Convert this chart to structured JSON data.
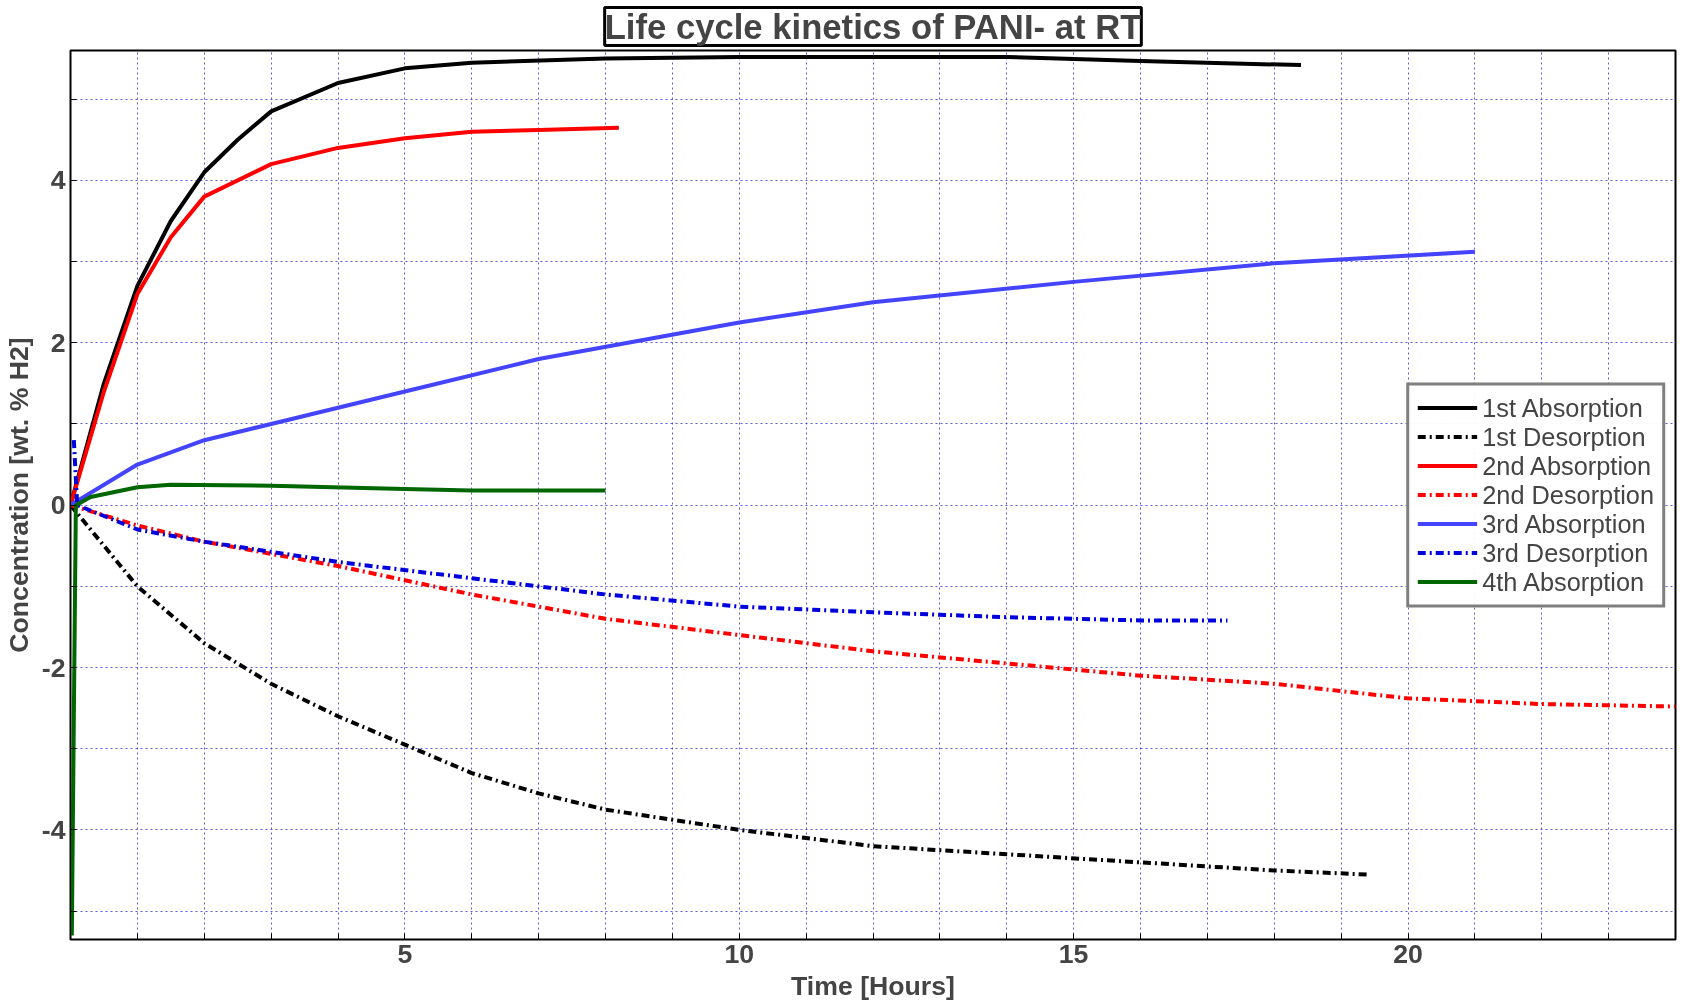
{
  "chart_data": {
    "type": "line",
    "title": "Life cycle kinetics of PANI- at RT",
    "xlabel": "Time [Hours]",
    "ylabel": "Concentration [wt. % H2]",
    "xlim": [
      0,
      24
    ],
    "ylim": [
      -5.35,
      5.6
    ],
    "xticks": [
      {
        "value": 1,
        "label": null
      },
      {
        "value": 2,
        "label": null
      },
      {
        "value": 3,
        "label": null
      },
      {
        "value": 4,
        "label": null
      },
      5,
      {
        "value": 6,
        "label": null
      },
      {
        "value": 7,
        "label": null
      },
      {
        "value": 8,
        "label": null
      },
      {
        "value": 9,
        "label": null
      },
      10,
      {
        "value": 11,
        "label": null
      },
      {
        "value": 12,
        "label": null
      },
      {
        "value": 13,
        "label": null
      },
      {
        "value": 14,
        "label": null
      },
      15,
      {
        "value": 16,
        "label": null
      },
      {
        "value": 17,
        "label": null
      },
      {
        "value": 18,
        "label": null
      },
      {
        "value": 19,
        "label": null
      },
      20,
      {
        "value": 21,
        "label": null
      },
      {
        "value": 22,
        "label": null
      },
      {
        "value": 23,
        "label": null
      }
    ],
    "yticks": [
      {
        "value": -5,
        "label": null
      },
      -4,
      {
        "value": -3,
        "label": null
      },
      -2,
      {
        "value": -1,
        "label": null
      },
      0,
      {
        "value": 1,
        "label": null
      },
      2,
      {
        "value": 3,
        "label": null
      },
      4,
      {
        "value": 5,
        "label": null
      }
    ],
    "grid": true,
    "legend": "right",
    "marker": "none",
    "series": [
      {
        "name": "1st Absorption",
        "color": "#000000",
        "line_style": "solid",
        "x": [
          0,
          0.5,
          1,
          1.5,
          2,
          2.5,
          3,
          4,
          5,
          6,
          8,
          10,
          12,
          14,
          16,
          18.4
        ],
        "values": [
          0,
          1.5,
          2.7,
          3.5,
          4.1,
          4.5,
          4.85,
          5.2,
          5.38,
          5.45,
          5.5,
          5.52,
          5.52,
          5.52,
          5.47,
          5.42
        ]
      },
      {
        "name": "1st Desorption",
        "color": "#000000",
        "line_style": "dashed",
        "x": [
          0,
          0.5,
          1,
          2,
          3,
          4,
          5,
          6,
          7,
          8,
          10,
          12,
          14,
          16,
          18,
          19.4
        ],
        "values": [
          0,
          -0.5,
          -1.0,
          -1.7,
          -2.2,
          -2.6,
          -2.95,
          -3.3,
          -3.55,
          -3.75,
          -4.0,
          -4.2,
          -4.3,
          -4.4,
          -4.5,
          -4.55
        ]
      },
      {
        "name": "2nd Absorption",
        "color": "#ff0000",
        "line_style": "solid",
        "x": [
          0,
          0.5,
          1,
          1.5,
          2,
          3,
          4,
          5,
          6,
          7,
          8.2
        ],
        "values": [
          0,
          1.4,
          2.6,
          3.3,
          3.8,
          4.2,
          4.4,
          4.52,
          4.6,
          4.62,
          4.65
        ]
      },
      {
        "name": "2nd Desorption",
        "color": "#ff0000",
        "line_style": "dashed",
        "x": [
          0,
          1,
          2,
          4,
          6,
          8,
          10,
          12,
          14,
          16,
          18,
          20,
          22,
          24
        ],
        "values": [
          0,
          -0.25,
          -0.45,
          -0.75,
          -1.1,
          -1.4,
          -1.6,
          -1.8,
          -1.95,
          -2.1,
          -2.2,
          -2.38,
          -2.45,
          -2.48
        ]
      },
      {
        "name": "3rd Absorption",
        "color": "#4444ff",
        "line_style": "solid",
        "x": [
          0,
          1,
          2,
          3,
          5,
          7,
          10,
          12,
          15,
          18,
          21
        ],
        "values": [
          0,
          0.5,
          0.8,
          1.0,
          1.4,
          1.8,
          2.25,
          2.5,
          2.75,
          2.98,
          3.12
        ]
      },
      {
        "name": "3rd Desorption",
        "color": "#0000dd",
        "line_style": "dashed",
        "x": [
          0.05,
          0.1,
          1,
          2,
          4,
          6,
          8,
          10,
          12,
          14,
          16,
          17.3
        ],
        "values": [
          0.8,
          0,
          -0.3,
          -0.45,
          -0.7,
          -0.9,
          -1.1,
          -1.25,
          -1.32,
          -1.38,
          -1.42,
          -1.42
        ]
      },
      {
        "name": "4th Absorption",
        "color": "#006600",
        "line_style": "solid",
        "x": [
          0.02,
          0.05,
          0.08,
          0.3,
          1,
          1.5,
          3,
          5,
          6,
          8
        ],
        "values": [
          -5.3,
          -2.6,
          0,
          0.1,
          0.22,
          0.25,
          0.24,
          0.2,
          0.18,
          0.18
        ]
      }
    ]
  }
}
